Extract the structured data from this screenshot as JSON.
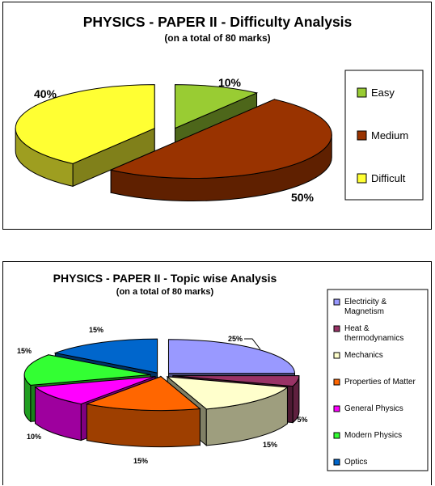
{
  "chart_data": [
    {
      "type": "pie",
      "title": "PHYSICS - PAPER II - Difficulty Analysis",
      "subtitle": "(on a total of 80 marks)",
      "legend_position": "right",
      "slices": [
        {
          "label": "Easy",
          "value": 10,
          "value_label": "10%",
          "color": "#99cc33"
        },
        {
          "label": "Medium",
          "value": 50,
          "value_label": "50%",
          "color": "#993300"
        },
        {
          "label": "Difficult",
          "value": 40,
          "value_label": "40%",
          "color": "#ffff33"
        }
      ]
    },
    {
      "type": "pie",
      "title": "PHYSICS - PAPER II - Topic wise Analysis",
      "subtitle": "(on a total of 80 marks)",
      "legend_position": "right",
      "slices": [
        {
          "label": "Electricity & Magnetism",
          "label_lines": [
            "Electricity &",
            "Magnetism"
          ],
          "value": 25,
          "value_label": "25%",
          "color": "#9999ff"
        },
        {
          "label": "Heat & thermodynamics",
          "label_lines": [
            "Heat &",
            "thermodynamics"
          ],
          "value": 5,
          "value_label": "5%",
          "color": "#993366"
        },
        {
          "label": "Mechanics",
          "label_lines": [
            "Mechanics"
          ],
          "value": 15,
          "value_label": "15%",
          "color": "#ffffcc"
        },
        {
          "label": "Properties of Matter",
          "label_lines": [
            "Properties of Matter"
          ],
          "value": 15,
          "value_label": "15%",
          "color": "#ff6600"
        },
        {
          "label": "General Physics",
          "label_lines": [
            "General Physics"
          ],
          "value": 10,
          "value_label": "10%",
          "color": "#ff00ff"
        },
        {
          "label": "Modern Physics",
          "label_lines": [
            "Modern Physics"
          ],
          "value": 15,
          "value_label": "15%",
          "color": "#33ff33"
        },
        {
          "label": "Optics",
          "label_lines": [
            "Optics"
          ],
          "value": 15,
          "value_label": "15%",
          "color": "#0066cc"
        }
      ]
    }
  ]
}
